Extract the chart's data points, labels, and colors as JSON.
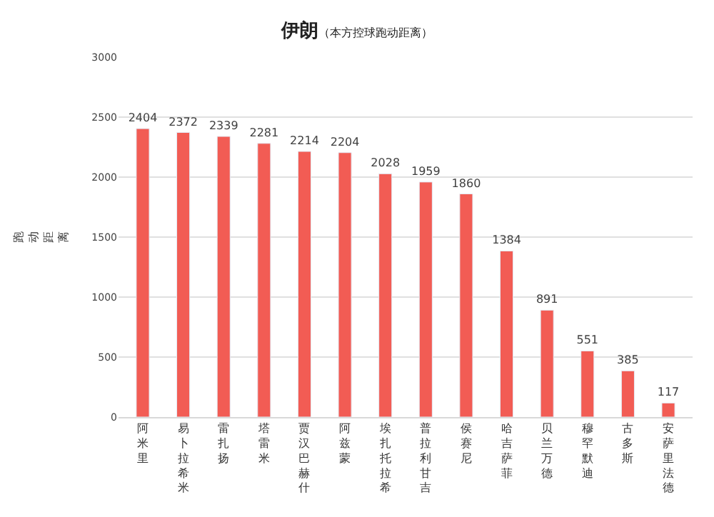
{
  "chart_data": {
    "type": "bar",
    "title": "伊朗",
    "subtitle": "（本方控球跑动距离）",
    "ylabel": "跑动距离",
    "categories": [
      "阿米里",
      "易卜拉希米",
      "雷扎扬",
      "塔雷米",
      "贾汉巴赫什",
      "阿兹蒙",
      "埃扎托拉希",
      "普拉利甘吉",
      "侯赛尼",
      "哈吉萨菲",
      "贝兰万德",
      "穆罕默迪",
      "古多斯",
      "安萨里法德"
    ],
    "values": [
      2404,
      2372,
      2339,
      2281,
      2214,
      2204,
      2028,
      1959,
      1860,
      1384,
      891,
      551,
      385,
      117
    ],
    "color": "#f25c54",
    "ylim": [
      0,
      3000
    ],
    "yticks": [
      0,
      500,
      1000,
      1500,
      2000,
      2500,
      3000
    ],
    "grid": "y",
    "data_labels": true,
    "legend": false
  }
}
